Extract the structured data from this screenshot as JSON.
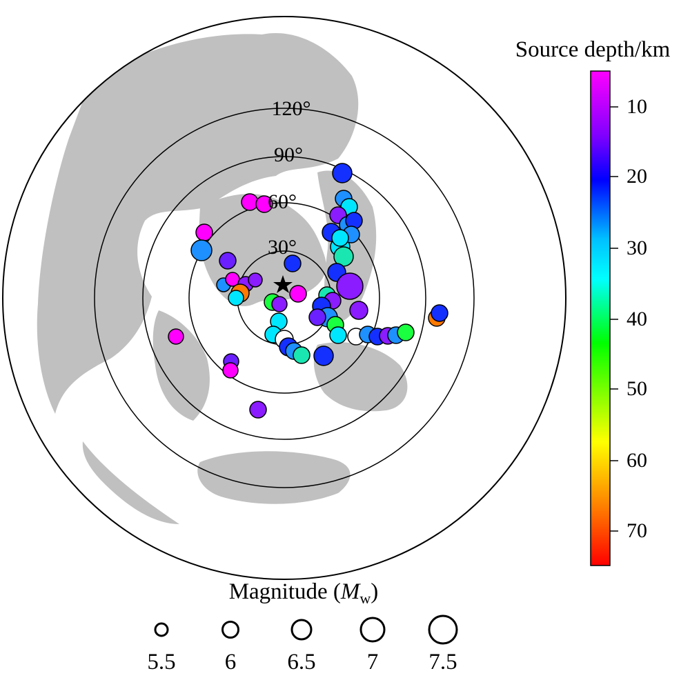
{
  "map": {
    "distance_labels": [
      "30°",
      "60°",
      "90°",
      "120°"
    ],
    "station_marker": "star-icon"
  },
  "colorbar": {
    "title": "Source depth/km",
    "ticks": [
      "10",
      "20",
      "30",
      "40",
      "50",
      "60",
      "70"
    ],
    "colors": [
      "#ff00ff",
      "#7f00ff",
      "#0000ff",
      "#00ffff",
      "#00ff00",
      "#ffff00",
      "#ff7f00",
      "#ff0000"
    ]
  },
  "magnitude_legend": {
    "title_prefix": "Magnitude (",
    "title_symbol": "M",
    "title_subscript": "w",
    "title_suffix": ")",
    "labels": [
      "5.5",
      "6",
      "6.5",
      "7",
      "7.5"
    ]
  },
  "land_color": "#c0c0c0"
}
